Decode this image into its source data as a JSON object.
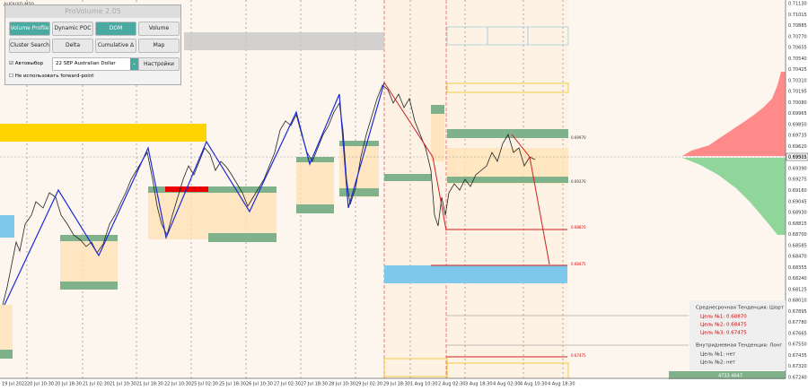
{
  "symbol": "AUDUSD,M30",
  "panel": {
    "title": "ProVolume 2.05",
    "buttons": [
      "Volume Profile",
      "Dynamic POC",
      "DOM",
      "Volume",
      "Cluster Search",
      "Delta",
      "Cumulative Δ",
      "Map"
    ],
    "auto_label": "Автовыбор",
    "instrument": "22 SEP Australian Dollar",
    "settings": "Настройки",
    "forward_label": "Не использовать forward-point"
  },
  "price_axis": [
    "0.71130",
    "0.71015",
    "0.70885",
    "0.70770",
    "0.70655",
    "0.70540",
    "0.70425",
    "0.70310",
    "0.70195",
    "0.70080",
    "0.69965",
    "0.69850",
    "0.69735",
    "0.69620",
    "0.69505",
    "0.69390",
    "0.69275",
    "0.69160",
    "0.69045",
    "0.68930",
    "0.68815",
    "0.68700",
    "0.68585",
    "0.68470",
    "0.68355",
    "0.68240",
    "0.68125",
    "0.68010",
    "0.67895",
    "0.67780",
    "0.67665",
    "0.67550",
    "0.67435",
    "0.67320",
    "0.67240"
  ],
  "current_price": "0.69921",
  "time_axis": [
    "19 Jul 2022",
    "20 Jul 10:30",
    "20 Jul 18:30",
    "21 Jul 02:30",
    "21 Jul 10:30",
    "21 Jul 18:30",
    "22 Jul 10:30",
    "25 Jul 02:30",
    "25 Jul 18:30",
    "26 Jul 10:30",
    "27 Jul 02:30",
    "27 Jul 18:30",
    "28 Jul 10:30",
    "29 Jul 02:30",
    "29 Jul 18:30",
    "1 Aug 10:30",
    "2 Aug 02:30",
    "3 Aug 18:30",
    "4 Aug 02:30",
    "4 Aug 10:30",
    "4 Aug 18:30"
  ],
  "levels": [
    "0.69970",
    "0.69370",
    "0.68870",
    "0.68475",
    "0.67475"
  ],
  "info": {
    "medium_trend": "Среднесрочная Тенденция: Шорт",
    "medium_targets": [
      "Цель №1: 0.68870",
      "Цель №2: 0.68475",
      "Цель №3: 0.67475"
    ],
    "intraday_trend": "Внутридневная Тенденция: Лонг",
    "intraday_targets": [
      "Цель №1: нет",
      "Цель №2: нет"
    ]
  },
  "volume_box": "4733 4647"
}
